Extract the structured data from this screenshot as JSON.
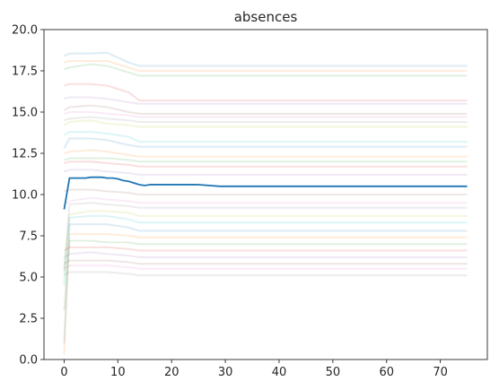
{
  "chart_data": {
    "type": "line",
    "title": "absences",
    "xlabel": "",
    "ylabel": "",
    "xlim": [
      -3.75,
      78.75
    ],
    "ylim": [
      0,
      20
    ],
    "xticks": [
      0,
      10,
      20,
      30,
      40,
      50,
      60,
      70
    ],
    "yticks": [
      0.0,
      2.5,
      5.0,
      7.5,
      10.0,
      12.5,
      15.0,
      17.5,
      20.0
    ],
    "grid": false,
    "legend": "none",
    "colors": {
      "main": "#1f77b4",
      "palette": [
        "#1f77b4",
        "#ff7f0e",
        "#2ca02c",
        "#d62728",
        "#9467bd",
        "#8c564b",
        "#e377c2",
        "#7f7f7f",
        "#bcbd22",
        "#17becf"
      ],
      "background_alpha": 0.15
    },
    "main_series": {
      "x": [
        0,
        1,
        2,
        3,
        4,
        5,
        6,
        7,
        8,
        9,
        10,
        11,
        12,
        13,
        14,
        15,
        16,
        20,
        25,
        29,
        30,
        40,
        50,
        60,
        70,
        75
      ],
      "y": [
        9.1,
        11.0,
        11.0,
        11.0,
        11.0,
        11.05,
        11.05,
        11.05,
        11.0,
        11.0,
        10.95,
        10.85,
        10.8,
        10.7,
        10.6,
        10.55,
        10.6,
        10.6,
        10.6,
        10.5,
        10.5,
        10.5,
        10.5,
        10.5,
        10.5,
        10.5
      ]
    },
    "background_series": [
      {
        "x": [
          0,
          1,
          5,
          8,
          12,
          14,
          75
        ],
        "y": [
          18.4,
          18.55,
          18.55,
          18.6,
          18.0,
          17.8,
          17.8
        ]
      },
      {
        "x": [
          0,
          1,
          5,
          8,
          12,
          14,
          75
        ],
        "y": [
          18.0,
          18.1,
          18.1,
          18.1,
          17.7,
          17.5,
          17.5
        ]
      },
      {
        "x": [
          0,
          1,
          5,
          8,
          12,
          14,
          75
        ],
        "y": [
          17.6,
          17.7,
          17.9,
          17.8,
          17.4,
          17.2,
          17.2
        ]
      },
      {
        "x": [
          0,
          1,
          5,
          8,
          12,
          14,
          75
        ],
        "y": [
          16.6,
          16.7,
          16.7,
          16.6,
          16.2,
          15.7,
          15.7
        ]
      },
      {
        "x": [
          0,
          1,
          5,
          8,
          12,
          14,
          75
        ],
        "y": [
          15.8,
          15.9,
          15.9,
          15.8,
          15.6,
          15.5,
          15.5
        ]
      },
      {
        "x": [
          0,
          1,
          5,
          8,
          12,
          14,
          75
        ],
        "y": [
          15.1,
          15.3,
          15.4,
          15.3,
          15.0,
          14.9,
          14.9
        ]
      },
      {
        "x": [
          0,
          1,
          5,
          8,
          12,
          14,
          75
        ],
        "y": [
          14.9,
          15.0,
          15.0,
          14.9,
          14.8,
          14.7,
          14.7
        ]
      },
      {
        "x": [
          0,
          1,
          5,
          8,
          12,
          14,
          75
        ],
        "y": [
          14.5,
          14.6,
          14.7,
          14.6,
          14.5,
          14.4,
          14.4
        ]
      },
      {
        "x": [
          0,
          1,
          5,
          8,
          12,
          14,
          75
        ],
        "y": [
          14.2,
          14.4,
          14.5,
          14.3,
          14.2,
          14.1,
          14.1
        ]
      },
      {
        "x": [
          0,
          1,
          5,
          8,
          12,
          14,
          75
        ],
        "y": [
          13.6,
          13.8,
          13.8,
          13.7,
          13.5,
          13.2,
          13.2
        ]
      },
      {
        "x": [
          0,
          1,
          5,
          8,
          12,
          14,
          75
        ],
        "y": [
          12.8,
          13.4,
          13.4,
          13.3,
          13.0,
          12.9,
          12.9
        ]
      },
      {
        "x": [
          0,
          1,
          5,
          8,
          12,
          14,
          75
        ],
        "y": [
          12.5,
          12.6,
          12.7,
          12.6,
          12.4,
          12.3,
          12.3
        ]
      },
      {
        "x": [
          0,
          1,
          5,
          8,
          12,
          14,
          75
        ],
        "y": [
          12.1,
          12.2,
          12.2,
          12.2,
          12.1,
          12.0,
          12.0
        ]
      },
      {
        "x": [
          0,
          1,
          5,
          8,
          12,
          14,
          75
        ],
        "y": [
          11.9,
          12.0,
          12.0,
          11.9,
          11.8,
          11.7,
          11.7
        ]
      },
      {
        "x": [
          0,
          1,
          5,
          8,
          12,
          14,
          75
        ],
        "y": [
          11.4,
          11.5,
          11.5,
          11.4,
          11.3,
          11.2,
          11.2
        ]
      },
      {
        "x": [
          0,
          1,
          5,
          8,
          12,
          14,
          75
        ],
        "y": [
          10.2,
          10.3,
          10.3,
          10.2,
          10.1,
          10.0,
          10.0
        ]
      },
      {
        "x": [
          0,
          1,
          5,
          8,
          12,
          14,
          75
        ],
        "y": [
          9.4,
          9.6,
          9.8,
          9.7,
          9.6,
          9.5,
          9.5
        ]
      },
      {
        "x": [
          0,
          1,
          5,
          8,
          12,
          14,
          75
        ],
        "y": [
          5.4,
          9.4,
          9.5,
          9.4,
          9.3,
          9.2,
          9.2
        ]
      },
      {
        "x": [
          0,
          1,
          5,
          8,
          12,
          14,
          75
        ],
        "y": [
          5.2,
          8.8,
          9.0,
          9.0,
          8.9,
          8.7,
          8.7
        ]
      },
      {
        "x": [
          0,
          1,
          5,
          8,
          12,
          14,
          75
        ],
        "y": [
          4.5,
          8.6,
          8.7,
          8.7,
          8.5,
          8.3,
          8.3
        ]
      },
      {
        "x": [
          0,
          1,
          5,
          8,
          12,
          14,
          75
        ],
        "y": [
          1.0,
          8.2,
          8.2,
          8.2,
          8.0,
          7.8,
          7.8
        ]
      },
      {
        "x": [
          0,
          1,
          5,
          8,
          12,
          14,
          75
        ],
        "y": [
          0.3,
          7.6,
          7.6,
          7.6,
          7.5,
          7.4,
          7.4
        ]
      },
      {
        "x": [
          0,
          1,
          5,
          8,
          12,
          14,
          75
        ],
        "y": [
          3.0,
          7.2,
          7.2,
          7.1,
          7.1,
          7.0,
          7.0
        ]
      },
      {
        "x": [
          0,
          1,
          5,
          8,
          12,
          14,
          75
        ],
        "y": [
          6.6,
          6.8,
          6.8,
          6.8,
          6.7,
          6.6,
          6.6
        ]
      },
      {
        "x": [
          0,
          1,
          5,
          8,
          12,
          14,
          75
        ],
        "y": [
          6.2,
          6.4,
          6.5,
          6.4,
          6.3,
          6.2,
          6.2
        ]
      },
      {
        "x": [
          0,
          1,
          5,
          8,
          12,
          14,
          75
        ],
        "y": [
          5.8,
          6.0,
          6.0,
          6.0,
          5.9,
          5.8,
          5.8
        ]
      },
      {
        "x": [
          0,
          1,
          5,
          8,
          12,
          14,
          75
        ],
        "y": [
          5.5,
          5.7,
          5.7,
          5.7,
          5.6,
          5.5,
          5.5
        ]
      },
      {
        "x": [
          0,
          1,
          5,
          8,
          12,
          14,
          75
        ],
        "y": [
          5.1,
          5.3,
          5.3,
          5.3,
          5.2,
          5.1,
          5.1
        ]
      }
    ]
  }
}
